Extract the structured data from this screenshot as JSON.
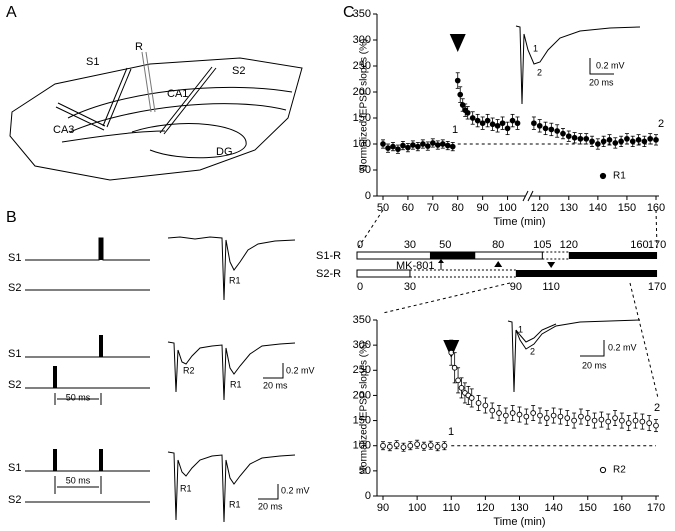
{
  "panels": {
    "a": "A",
    "b": "B",
    "c": "C"
  },
  "diagram": {
    "r": "R",
    "s1": "S1",
    "s2": "S2",
    "ca1": "CA1",
    "ca3": "CA3",
    "dg": "DG"
  },
  "protocols": [
    {
      "s1": "S1",
      "s2": "S2",
      "response_labels": [
        "R1"
      ]
    },
    {
      "s1": "S1",
      "s2": "S2",
      "interval": "50 ms",
      "response_labels": [
        "R2",
        "R1"
      ],
      "scale_v": "0.2 mV",
      "scale_t": "20 ms"
    },
    {
      "s1": "S1",
      "s2": "S2",
      "interval": "50 ms",
      "response_labels": [
        "R1",
        "R1"
      ],
      "scale_v": "0.2 mV",
      "scale_t": "20 ms"
    }
  ],
  "timeline": {
    "s1": {
      "label": "S1-R",
      "ticks": [
        0,
        30,
        50,
        80,
        105,
        120,
        160,
        170
      ],
      "marker": 80
    },
    "s2": {
      "label": "S2-R",
      "ticks": [
        0,
        30,
        90,
        110,
        170
      ],
      "marker": 110
    },
    "drug": "MK-801"
  },
  "chart_data": [
    {
      "type": "scatter",
      "y_label": "Normalized fEPSP slopes (%)",
      "x_label": "Time (min)",
      "xlim": [
        50,
        160
      ],
      "x_break": [
        107,
        117
      ],
      "xticks": [
        50,
        60,
        70,
        80,
        90,
        100,
        120,
        130,
        140,
        150,
        160
      ],
      "ylim": [
        0,
        350
      ],
      "yticks": [
        0,
        50,
        100,
        150,
        200,
        250,
        300,
        350
      ],
      "baseline": 100,
      "stimulus": 80,
      "annotations": [
        "1",
        "2"
      ],
      "inset": {
        "labels": [
          "1",
          "2"
        ],
        "scale_v": "0.2 mV",
        "scale_t": "20 ms"
      },
      "series": [
        {
          "name": "R1",
          "color": "#000000",
          "marker": "filled",
          "x": [
            50,
            52,
            54,
            56,
            58,
            60,
            62,
            64,
            66,
            68,
            70,
            72,
            74,
            76,
            78,
            80,
            81,
            82,
            83,
            84,
            86,
            88,
            90,
            92,
            94,
            96,
            98,
            100,
            102,
            104,
            118,
            120,
            122,
            124,
            126,
            128,
            130,
            132,
            134,
            136,
            138,
            140,
            142,
            144,
            146,
            148,
            150,
            152,
            154,
            156,
            158,
            160
          ],
          "values": [
            100,
            92,
            95,
            90,
            97,
            93,
            98,
            95,
            100,
            96,
            102,
            98,
            100,
            97,
            95,
            222,
            195,
            175,
            165,
            160,
            150,
            145,
            140,
            145,
            138,
            135,
            140,
            130,
            145,
            140,
            140,
            135,
            130,
            128,
            125,
            120,
            115,
            112,
            110,
            110,
            105,
            100,
            105,
            108,
            102,
            105,
            110,
            105,
            108,
            105,
            110,
            108
          ],
          "errors": [
            8,
            8,
            8,
            8,
            8,
            8,
            8,
            8,
            8,
            8,
            8,
            8,
            8,
            8,
            8,
            15,
            15,
            12,
            12,
            12,
            12,
            12,
            12,
            12,
            12,
            12,
            12,
            12,
            12,
            12,
            12,
            12,
            12,
            12,
            12,
            10,
            10,
            10,
            10,
            10,
            10,
            10,
            10,
            10,
            10,
            10,
            10,
            10,
            10,
            10,
            10,
            10
          ]
        }
      ]
    },
    {
      "type": "scatter",
      "y_label": "Normalized fEPSP slopes (%)",
      "x_label": "Time (min)",
      "xlim": [
        90,
        170
      ],
      "xticks": [
        90,
        100,
        110,
        120,
        130,
        140,
        150,
        160,
        170
      ],
      "ylim": [
        0,
        350
      ],
      "yticks": [
        0,
        50,
        100,
        150,
        200,
        250,
        300,
        350
      ],
      "baseline": 100,
      "stimulus": 110,
      "annotations": [
        "1",
        "2"
      ],
      "inset": {
        "labels": [
          "1",
          "2"
        ],
        "scale_v": "0.2 mV",
        "scale_t": "20 ms"
      },
      "series": [
        {
          "name": "R2",
          "color": "#000000",
          "marker": "open",
          "x": [
            90,
            92,
            94,
            96,
            98,
            100,
            102,
            104,
            106,
            108,
            110,
            111,
            112,
            113,
            114,
            115,
            116,
            118,
            120,
            122,
            124,
            126,
            128,
            130,
            132,
            134,
            136,
            138,
            140,
            142,
            144,
            146,
            148,
            150,
            152,
            154,
            156,
            158,
            160,
            162,
            164,
            166,
            168,
            170
          ],
          "values": [
            100,
            98,
            102,
            97,
            100,
            103,
            99,
            101,
            98,
            100,
            285,
            255,
            230,
            215,
            205,
            200,
            195,
            185,
            180,
            170,
            165,
            160,
            165,
            162,
            158,
            165,
            160,
            155,
            160,
            158,
            155,
            150,
            158,
            155,
            150,
            152,
            148,
            155,
            150,
            145,
            150,
            148,
            145,
            140
          ],
          "errors": [
            8,
            8,
            8,
            8,
            8,
            8,
            8,
            8,
            8,
            8,
            25,
            30,
            25,
            20,
            20,
            18,
            18,
            15,
            15,
            15,
            15,
            15,
            15,
            15,
            15,
            15,
            15,
            15,
            15,
            15,
            15,
            15,
            15,
            15,
            15,
            15,
            15,
            15,
            15,
            15,
            15,
            15,
            15,
            12
          ]
        }
      ]
    }
  ]
}
